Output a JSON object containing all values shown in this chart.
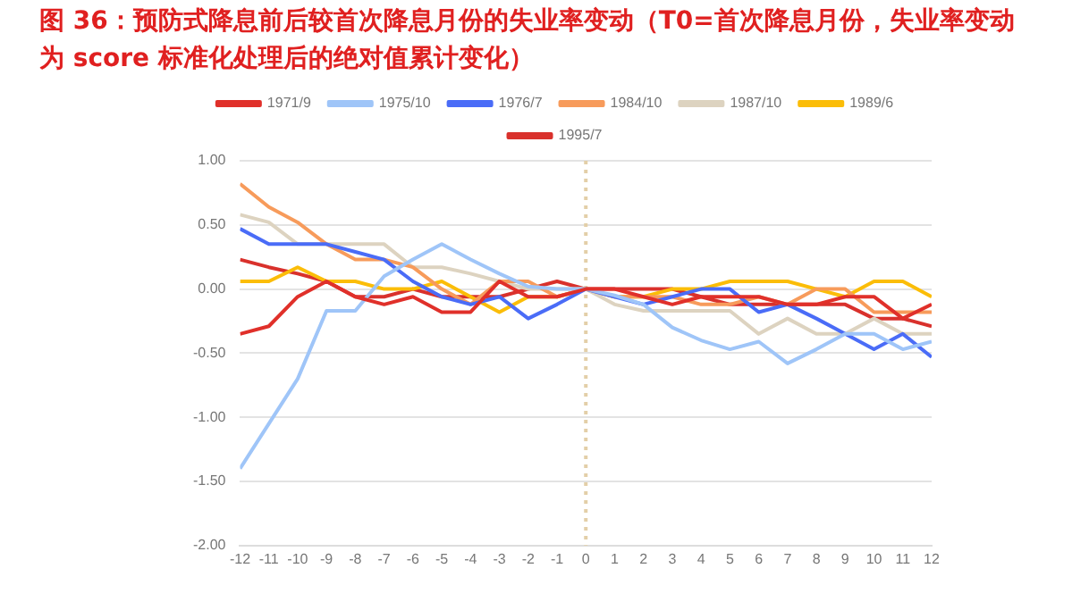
{
  "chart_data": {
    "type": "line",
    "title": "图 36：预防式降息前后较首次降息月份的失业率变动（T0=首次降息月份，失业率变动为 score 标准化处理后的绝对值累计变化）",
    "x": [
      -12,
      -11,
      -10,
      -9,
      -8,
      -7,
      -6,
      -5,
      -4,
      -3,
      -2,
      -1,
      0,
      1,
      2,
      3,
      4,
      5,
      6,
      7,
      8,
      9,
      10,
      11,
      12
    ],
    "xlim": [
      -12,
      12
    ],
    "xticks": [
      -12,
      -11,
      -10,
      -9,
      -8,
      -7,
      -6,
      -5,
      -4,
      -3,
      -2,
      -1,
      0,
      1,
      2,
      3,
      4,
      5,
      6,
      7,
      8,
      9,
      10,
      11,
      12
    ],
    "ylim": [
      -2,
      1
    ],
    "yticks": [
      {
        "value": -2,
        "label": "-2.00"
      },
      {
        "value": -1.5,
        "label": "-1.50"
      },
      {
        "value": -1,
        "label": "-1.00"
      },
      {
        "value": -0.5,
        "label": "-0.50"
      },
      {
        "value": 0,
        "label": "0.00"
      },
      {
        "value": 0.5,
        "label": "0.50"
      },
      {
        "value": 1,
        "label": "1.00"
      }
    ],
    "grid": "y",
    "legend": "top",
    "marker": "none",
    "line_style": "solid",
    "ref_lines": [
      {
        "axis": "x",
        "value": 0,
        "color": "#e3cfa8",
        "line_style": "dotted"
      }
    ],
    "series": [
      {
        "name": "1971/9",
        "color": "#e0302a",
        "values": [
          -0.35,
          -0.29,
          -0.06,
          0.06,
          -0.06,
          -0.12,
          -0.06,
          -0.18,
          -0.18,
          0.06,
          -0.06,
          -0.06,
          0,
          0,
          -0.06,
          -0.12,
          -0.06,
          -0.06,
          -0.06,
          -0.12,
          -0.12,
          -0.06,
          -0.06,
          -0.23,
          -0.12
        ]
      },
      {
        "name": "1975/10",
        "color": "#9fc5f8",
        "values": [
          -1.4,
          -1.05,
          -0.7,
          -0.17,
          -0.17,
          0.1,
          0.23,
          0.35,
          0.23,
          0.12,
          0.02,
          0,
          0,
          -0.05,
          -0.12,
          -0.3,
          -0.4,
          -0.47,
          -0.41,
          -0.58,
          -0.47,
          -0.35,
          -0.35,
          -0.47,
          -0.41
        ]
      },
      {
        "name": "1976/7",
        "color": "#4a6cf7",
        "values": [
          0.47,
          0.35,
          0.35,
          0.35,
          0.29,
          0.23,
          0.06,
          -0.06,
          -0.12,
          -0.06,
          -0.23,
          -0.12,
          0,
          -0.06,
          -0.12,
          -0.06,
          0,
          0,
          -0.18,
          -0.12,
          -0.23,
          -0.35,
          -0.47,
          -0.35,
          -0.53
        ]
      },
      {
        "name": "1984/10",
        "color": "#f79b5b",
        "values": [
          0.82,
          0.64,
          0.52,
          0.35,
          0.23,
          0.23,
          0.17,
          0,
          -0.12,
          0.06,
          0.06,
          -0.06,
          0,
          -0.06,
          -0.06,
          -0.06,
          -0.12,
          -0.12,
          -0.06,
          -0.12,
          0,
          0,
          -0.18,
          -0.18,
          -0.18
        ]
      },
      {
        "name": "1987/10",
        "color": "#ddd3c0",
        "values": [
          0.58,
          0.52,
          0.35,
          0.35,
          0.35,
          0.35,
          0.17,
          0.17,
          0.12,
          0.06,
          0,
          0,
          0,
          -0.12,
          -0.17,
          -0.17,
          -0.17,
          -0.17,
          -0.35,
          -0.23,
          -0.35,
          -0.35,
          -0.23,
          -0.35,
          -0.35
        ]
      },
      {
        "name": "1989/6",
        "color": "#fbbd08",
        "values": [
          0.06,
          0.06,
          0.17,
          0.06,
          0.06,
          0,
          0,
          0.06,
          -0.06,
          -0.18,
          -0.06,
          -0.06,
          0,
          -0.06,
          -0.06,
          0,
          0,
          0.06,
          0.06,
          0.06,
          0,
          -0.06,
          0.06,
          0.06,
          -0.06
        ]
      },
      {
        "name": "1995/7",
        "color": "#d9312c",
        "values": [
          0.23,
          0.17,
          0.12,
          0.06,
          -0.06,
          -0.06,
          0,
          -0.06,
          -0.06,
          -0.06,
          0,
          0.06,
          0,
          0,
          0,
          0,
          -0.06,
          -0.12,
          -0.12,
          -0.12,
          -0.12,
          -0.12,
          -0.23,
          -0.23,
          -0.29
        ]
      }
    ]
  }
}
